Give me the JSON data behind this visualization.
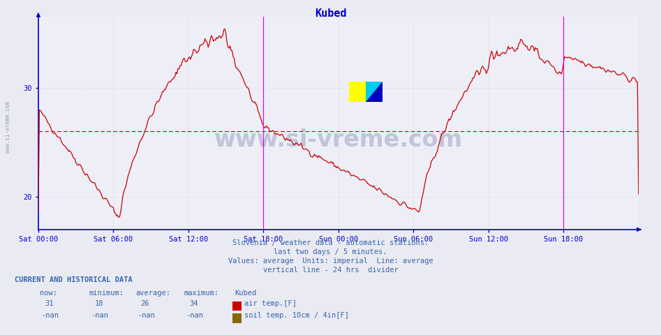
{
  "title": "Kubed",
  "title_color": "#0000cc",
  "bg_color": "#eaeaf2",
  "plot_bg_color": "#eeeef6",
  "grid_color": "#ccccdd",
  "line_color": "#cc0000",
  "avg_line_color": "#cc0000",
  "vline_color": "#ee00ee",
  "axis_color": "#0000cc",
  "tick_color": "#0000aa",
  "text_color": "#3366aa",
  "y_min": 17.0,
  "y_max": 36.5,
  "y_ticks": [
    20,
    30
  ],
  "avg_value": 26.0,
  "num_points": 577,
  "subtitle_lines": [
    "Slovenia / weather data - automatic stations.",
    "last two days / 5 minutes.",
    "Values: average  Units: imperial  Line: average",
    "vertical line - 24 hrs  divider"
  ],
  "x_tick_labels": [
    "Sat 00:00",
    "Sat 06:00",
    "Sat 12:00",
    "Sat 18:00",
    "Sun 00:00",
    "Sun 06:00",
    "Sun 12:00",
    "Sun 18:00"
  ],
  "x_tick_positions": [
    0,
    72,
    144,
    216,
    288,
    360,
    432,
    504
  ],
  "vline_positions": [
    216,
    504
  ],
  "now_val": "31",
  "min_val": "18",
  "avg_val": "26",
  "max_val": "34",
  "watermark_text": "www.si-vreme.com",
  "sidebar_text": "www.si-vreme.com",
  "air_temp_color": "#cc0000",
  "soil_temp_color": "#886600",
  "logo_yellow": "#ffff00",
  "logo_cyan": "#00ccee",
  "logo_darkblue": "#0000bb"
}
